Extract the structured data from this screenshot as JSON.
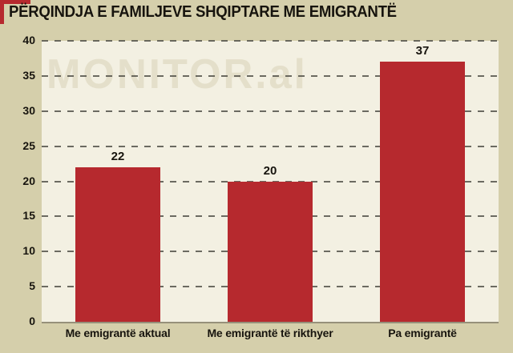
{
  "page": {
    "background_color": "#d5cfab",
    "plot_background_color": "#f3f0e2",
    "accent_color": "#b6292e",
    "text_color": "#17140e",
    "watermark_color": "#e4dfca"
  },
  "chart_data": {
    "type": "bar",
    "title": "PËRQINDJA E FAMILJEVE SHQIPTARE ME EMIGRANTË",
    "watermark": "MONITOR.al",
    "categories": [
      "Me emigrantë aktual",
      "Me emigrantë të rikthyer",
      "Pa emigrantë"
    ],
    "values": [
      22,
      20,
      37
    ],
    "value_labels": [
      "22",
      "20",
      "37"
    ],
    "xlabel": "",
    "ylabel": "",
    "ylim": [
      0,
      40
    ],
    "yticks": [
      0,
      5,
      10,
      15,
      20,
      25,
      30,
      35,
      40
    ],
    "grid": "horizontal-dashed",
    "legend": "none",
    "bar_color": "#b6292e"
  }
}
